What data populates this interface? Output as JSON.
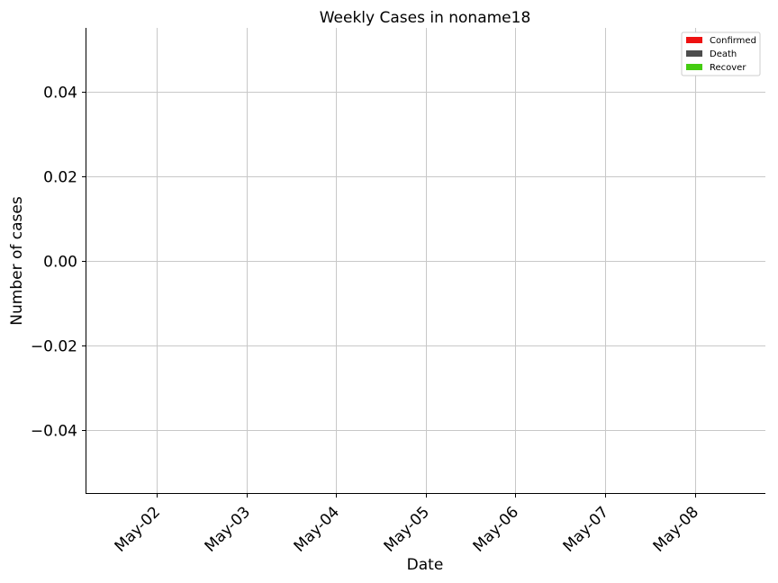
{
  "chart_data": {
    "type": "bar",
    "title": "Weekly Cases in noname18",
    "xlabel": "Date",
    "ylabel": "Number of cases",
    "categories": [
      "May-02",
      "May-03",
      "May-04",
      "May-05",
      "May-06",
      "May-07",
      "May-08"
    ],
    "ylim": [
      -0.055,
      0.055
    ],
    "yticks": [
      -0.04,
      -0.02,
      0.0,
      0.02,
      0.04
    ],
    "ytick_labels": [
      "−0.04",
      "−0.02",
      "0.00",
      "0.02",
      "0.04"
    ],
    "series": [
      {
        "name": "Confirmed",
        "color": "#ee1111",
        "values": [
          0,
          0,
          0,
          0,
          0,
          0,
          0
        ]
      },
      {
        "name": "Death",
        "color": "#4d4d4d",
        "values": [
          0,
          0,
          0,
          0,
          0,
          0,
          0
        ]
      },
      {
        "name": "Recover",
        "color": "#44cc11",
        "values": [
          0,
          0,
          0,
          0,
          0,
          0,
          0
        ]
      }
    ],
    "grid": true,
    "legend_position": "top-right"
  }
}
